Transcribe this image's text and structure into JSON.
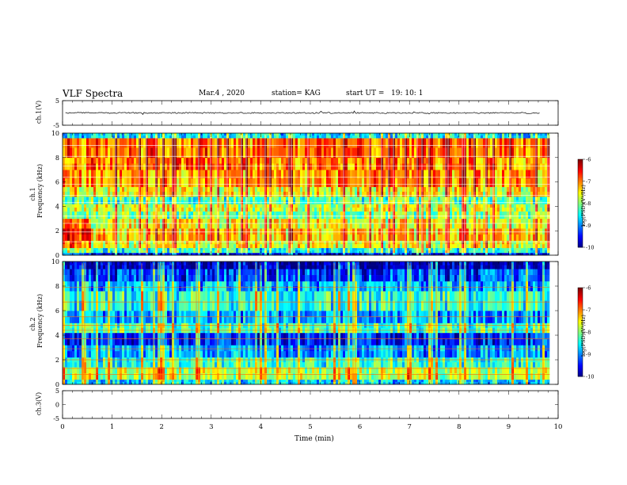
{
  "header": {
    "title": "VLF Spectra",
    "date": "Mar.4 , 2020",
    "station": "station= KAG",
    "start": "start UT =",
    "start_time": "19: 10: 1"
  },
  "chart_data": [
    {
      "type": "line",
      "panel": "ch1-waveform",
      "ylabel": "ch.1(V)",
      "yticks": [
        "5",
        "-5"
      ],
      "ylim": [
        -5,
        5
      ],
      "xlim": [
        0,
        10
      ],
      "description_values": {
        "baseline": 0
      }
    },
    {
      "type": "heatmap",
      "panel": "ch1-spectrogram",
      "ylabel": "ch.1\nFrequency (kHz)",
      "ylabel_lines": [
        "ch.1",
        "Frequency (kHz)"
      ],
      "yticks": [
        "0",
        "2",
        "4",
        "6",
        "8",
        "10"
      ],
      "ylim": [
        0,
        10
      ],
      "xlim": [
        0,
        9.83
      ],
      "colorbar": {
        "label": "log(PSD)(V²/Hz)",
        "ticks": [
          "-6",
          "-7",
          "-8",
          "-9",
          "-10"
        ],
        "range": [
          -10,
          -6
        ]
      },
      "band_levels": [
        {
          "f0": 0.0,
          "f1": 0.2,
          "level": -9.6
        },
        {
          "f0": 0.2,
          "f1": 0.6,
          "level": -8.4
        },
        {
          "f0": 0.6,
          "f1": 1.2,
          "level": -7.6
        },
        {
          "f0": 1.2,
          "f1": 2.2,
          "level": -7.3
        },
        {
          "f0": 2.2,
          "f1": 3.0,
          "level": -7.6
        },
        {
          "f0": 3.0,
          "f1": 3.6,
          "level": -8.0
        },
        {
          "f0": 3.6,
          "f1": 4.2,
          "level": -7.7
        },
        {
          "f0": 4.2,
          "f1": 4.8,
          "level": -8.2
        },
        {
          "f0": 4.8,
          "f1": 5.6,
          "level": -7.5
        },
        {
          "f0": 5.6,
          "f1": 7.0,
          "level": -7.1
        },
        {
          "f0": 7.0,
          "f1": 8.0,
          "level": -7.0
        },
        {
          "f0": 8.0,
          "f1": 9.6,
          "level": -6.9
        },
        {
          "f0": 9.6,
          "f1": 10.0,
          "level": -8.6
        }
      ]
    },
    {
      "type": "heatmap",
      "panel": "ch2-spectrogram",
      "ylabel": "ch.2\nFrequency (kHz)",
      "ylabel_lines": [
        "ch.2",
        "Frequency (kHz)"
      ],
      "yticks": [
        "0",
        "2",
        "4",
        "6",
        "8",
        "10"
      ],
      "ylim": [
        0,
        10
      ],
      "xlim": [
        0,
        9.83
      ],
      "colorbar": {
        "label": "log(PSD)(V²/Hz)",
        "ticks": [
          "-6",
          "-7",
          "-8",
          "-9",
          "-10"
        ],
        "range": [
          -10,
          -6
        ]
      },
      "band_levels": [
        {
          "f0": 0.0,
          "f1": 0.4,
          "level": -8.6
        },
        {
          "f0": 0.4,
          "f1": 1.4,
          "level": -7.8
        },
        {
          "f0": 1.4,
          "f1": 2.2,
          "level": -8.3
        },
        {
          "f0": 2.2,
          "f1": 3.2,
          "level": -8.9
        },
        {
          "f0": 3.2,
          "f1": 4.2,
          "level": -9.4
        },
        {
          "f0": 4.2,
          "f1": 5.0,
          "level": -8.2
        },
        {
          "f0": 5.0,
          "f1": 6.0,
          "level": -8.9
        },
        {
          "f0": 6.0,
          "f1": 7.6,
          "level": -8.4
        },
        {
          "f0": 7.6,
          "f1": 8.4,
          "level": -8.8
        },
        {
          "f0": 8.4,
          "f1": 9.4,
          "level": -9.3
        },
        {
          "f0": 9.4,
          "f1": 10.0,
          "level": -9.8
        }
      ]
    },
    {
      "type": "line",
      "panel": "ch3-waveform",
      "ylabel": "ch.3(V)",
      "yticks": [
        "5",
        "0",
        "-5"
      ],
      "ylim": [
        -5,
        5
      ],
      "xlim": [
        0,
        10
      ]
    }
  ],
  "xaxis": {
    "label": "Time (min)",
    "ticks": [
      "0",
      "1",
      "2",
      "3",
      "4",
      "5",
      "6",
      "7",
      "8",
      "9",
      "10"
    ],
    "xlim": [
      0,
      10
    ]
  }
}
